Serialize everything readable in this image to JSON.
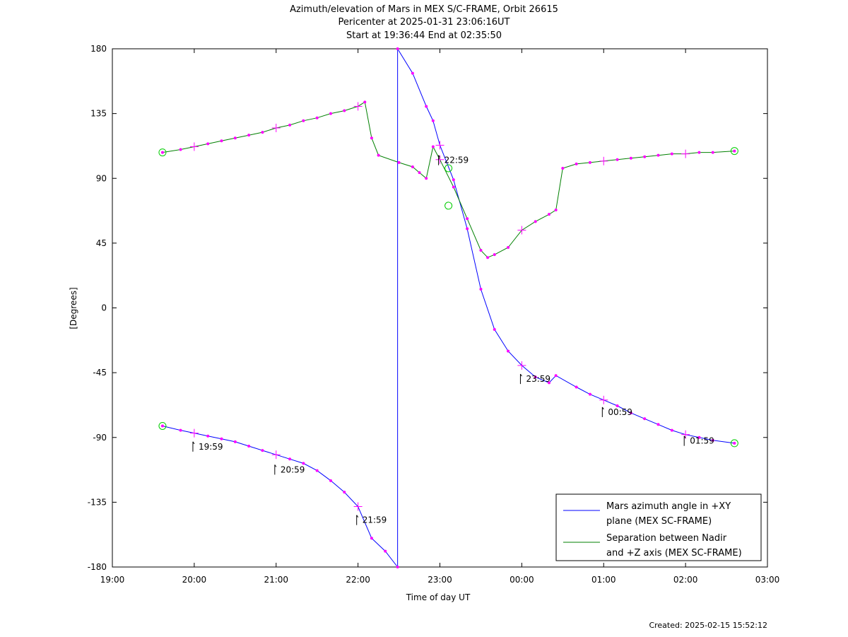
{
  "header": {
    "title": "Azimuth/elevation of Mars in MEX S/C-FRAME,  Orbit 26615",
    "subtitle1": "Pericenter at 2025-01-31 23:06:16UT",
    "subtitle2": "Start at 19:36:44 End at 02:35:50"
  },
  "footer": {
    "created": "Created: 2025-02-15 15:52:12"
  },
  "chart_data": {
    "type": "line",
    "xlabel": "Time of day UT",
    "ylabel": "[Degrees]",
    "x_unit": "hours",
    "xlim": [
      "19:00",
      "03:00"
    ],
    "ylim": [
      -180,
      180
    ],
    "x_ticks": [
      "19:00",
      "20:00",
      "21:00",
      "22:00",
      "23:00",
      "00:00",
      "01:00",
      "02:00",
      "03:00"
    ],
    "y_ticks": [
      180,
      135,
      90,
      45,
      0,
      -45,
      -90,
      -135,
      -180
    ],
    "grid": false,
    "legend_position": "bottom-right",
    "series": [
      {
        "name": "Mars azimuth angle in +XY plane (MEX SC-FRAME)",
        "legend_lines": [
          "Mars azimuth angle in +XY",
          "plane (MEX SC-FRAME)"
        ],
        "color": "#0000ff",
        "points": [
          [
            "19:36:44",
            -82
          ],
          [
            "19:50",
            -85
          ],
          [
            "20:00",
            -87
          ],
          [
            "20:10",
            -89
          ],
          [
            "20:20",
            -91
          ],
          [
            "20:30",
            -93
          ],
          [
            "20:40",
            -96
          ],
          [
            "20:50",
            -99
          ],
          [
            "21:00",
            -102
          ],
          [
            "21:10",
            -105
          ],
          [
            "21:20",
            -108
          ],
          [
            "21:30",
            -113
          ],
          [
            "21:40",
            -120
          ],
          [
            "21:50",
            -128
          ],
          [
            "22:00",
            -138
          ],
          [
            "22:10",
            -160
          ],
          [
            "22:20",
            -169
          ],
          [
            "22:29",
            -180
          ],
          [
            "22:29",
            180
          ],
          [
            "22:40",
            163
          ],
          [
            "22:50",
            140
          ],
          [
            "22:55",
            130
          ],
          [
            "23:00",
            113
          ],
          [
            "23:10",
            89
          ],
          [
            "23:20",
            55
          ],
          [
            "23:30",
            13
          ],
          [
            "23:40",
            -15
          ],
          [
            "23:50",
            -30
          ],
          [
            "24:00",
            -40
          ],
          [
            "24:10",
            -48
          ],
          [
            "24:20",
            -52
          ],
          [
            "24:25",
            -47
          ],
          [
            "24:40",
            -55
          ],
          [
            "24:50",
            -60
          ],
          [
            "25:00",
            -64
          ],
          [
            "25:10",
            -68
          ],
          [
            "25:20",
            -73
          ],
          [
            "25:30",
            -77
          ],
          [
            "25:40",
            -81
          ],
          [
            "25:50",
            -85
          ],
          [
            "26:00",
            -88
          ],
          [
            "26:10",
            -90
          ],
          [
            "26:20",
            -92
          ],
          [
            "26:35:50",
            -94
          ]
        ]
      },
      {
        "name": "Separation between Nadir and +Z axis (MEX SC-FRAME)",
        "legend_lines": [
          "Separation between Nadir",
          "and +Z axis (MEX SC-FRAME)"
        ],
        "color": "#008000",
        "points": [
          [
            "19:36:44",
            108
          ],
          [
            "19:50",
            110
          ],
          [
            "20:00",
            112
          ],
          [
            "20:10",
            114
          ],
          [
            "20:20",
            116
          ],
          [
            "20:30",
            118
          ],
          [
            "20:40",
            120
          ],
          [
            "20:50",
            122
          ],
          [
            "21:00",
            125
          ],
          [
            "21:10",
            127
          ],
          [
            "21:20",
            130
          ],
          [
            "21:30",
            132
          ],
          [
            "21:40",
            135
          ],
          [
            "21:50",
            137
          ],
          [
            "22:00",
            140
          ],
          [
            "22:05",
            143
          ],
          [
            "22:10",
            118
          ],
          [
            "22:15",
            106
          ],
          [
            "22:30",
            101
          ],
          [
            "22:40",
            98
          ],
          [
            "22:45",
            94
          ],
          [
            "22:50",
            90
          ],
          [
            "22:55",
            112
          ],
          [
            "23:00",
            103
          ],
          [
            "23:10",
            84
          ],
          [
            "23:20",
            62
          ],
          [
            "23:30",
            40
          ],
          [
            "23:35",
            35
          ],
          [
            "23:40",
            37
          ],
          [
            "23:50",
            42
          ],
          [
            "24:00",
            54
          ],
          [
            "24:10",
            60
          ],
          [
            "24:20",
            65
          ],
          [
            "24:25",
            68
          ],
          [
            "24:30",
            97
          ],
          [
            "24:40",
            100
          ],
          [
            "24:50",
            101
          ],
          [
            "25:00",
            102
          ],
          [
            "25:10",
            103
          ],
          [
            "25:20",
            104
          ],
          [
            "25:30",
            105
          ],
          [
            "25:40",
            106
          ],
          [
            "25:50",
            107
          ],
          [
            "26:00",
            107
          ],
          [
            "26:10",
            108
          ],
          [
            "26:20",
            108
          ],
          [
            "26:35:50",
            109
          ]
        ]
      }
    ],
    "annotations": [
      {
        "text": "19:59",
        "x": "19:59",
        "y": -92
      },
      {
        "text": "20:59",
        "x": "20:59",
        "y": -108
      },
      {
        "text": "21:59",
        "x": "21:59",
        "y": -143
      },
      {
        "text": "22:59",
        "x": "22:59",
        "y": 107
      },
      {
        "text": "23:59",
        "x": "23:59",
        "y": -45
      },
      {
        "text": "00:59",
        "x": "24:59",
        "y": -68
      },
      {
        "text": "01:59",
        "x": "25:59",
        "y": -88
      }
    ],
    "markers": {
      "start_end_circles": [
        [
          "19:36:44",
          108
        ],
        [
          "19:36:44",
          -82
        ],
        [
          "26:35:50",
          109
        ],
        [
          "26:35:50",
          -94
        ],
        [
          "23:06:16",
          97
        ],
        [
          "23:06:16",
          71
        ]
      ],
      "marker_color": "#ff00ff",
      "circle_color": "#00cc00"
    }
  }
}
